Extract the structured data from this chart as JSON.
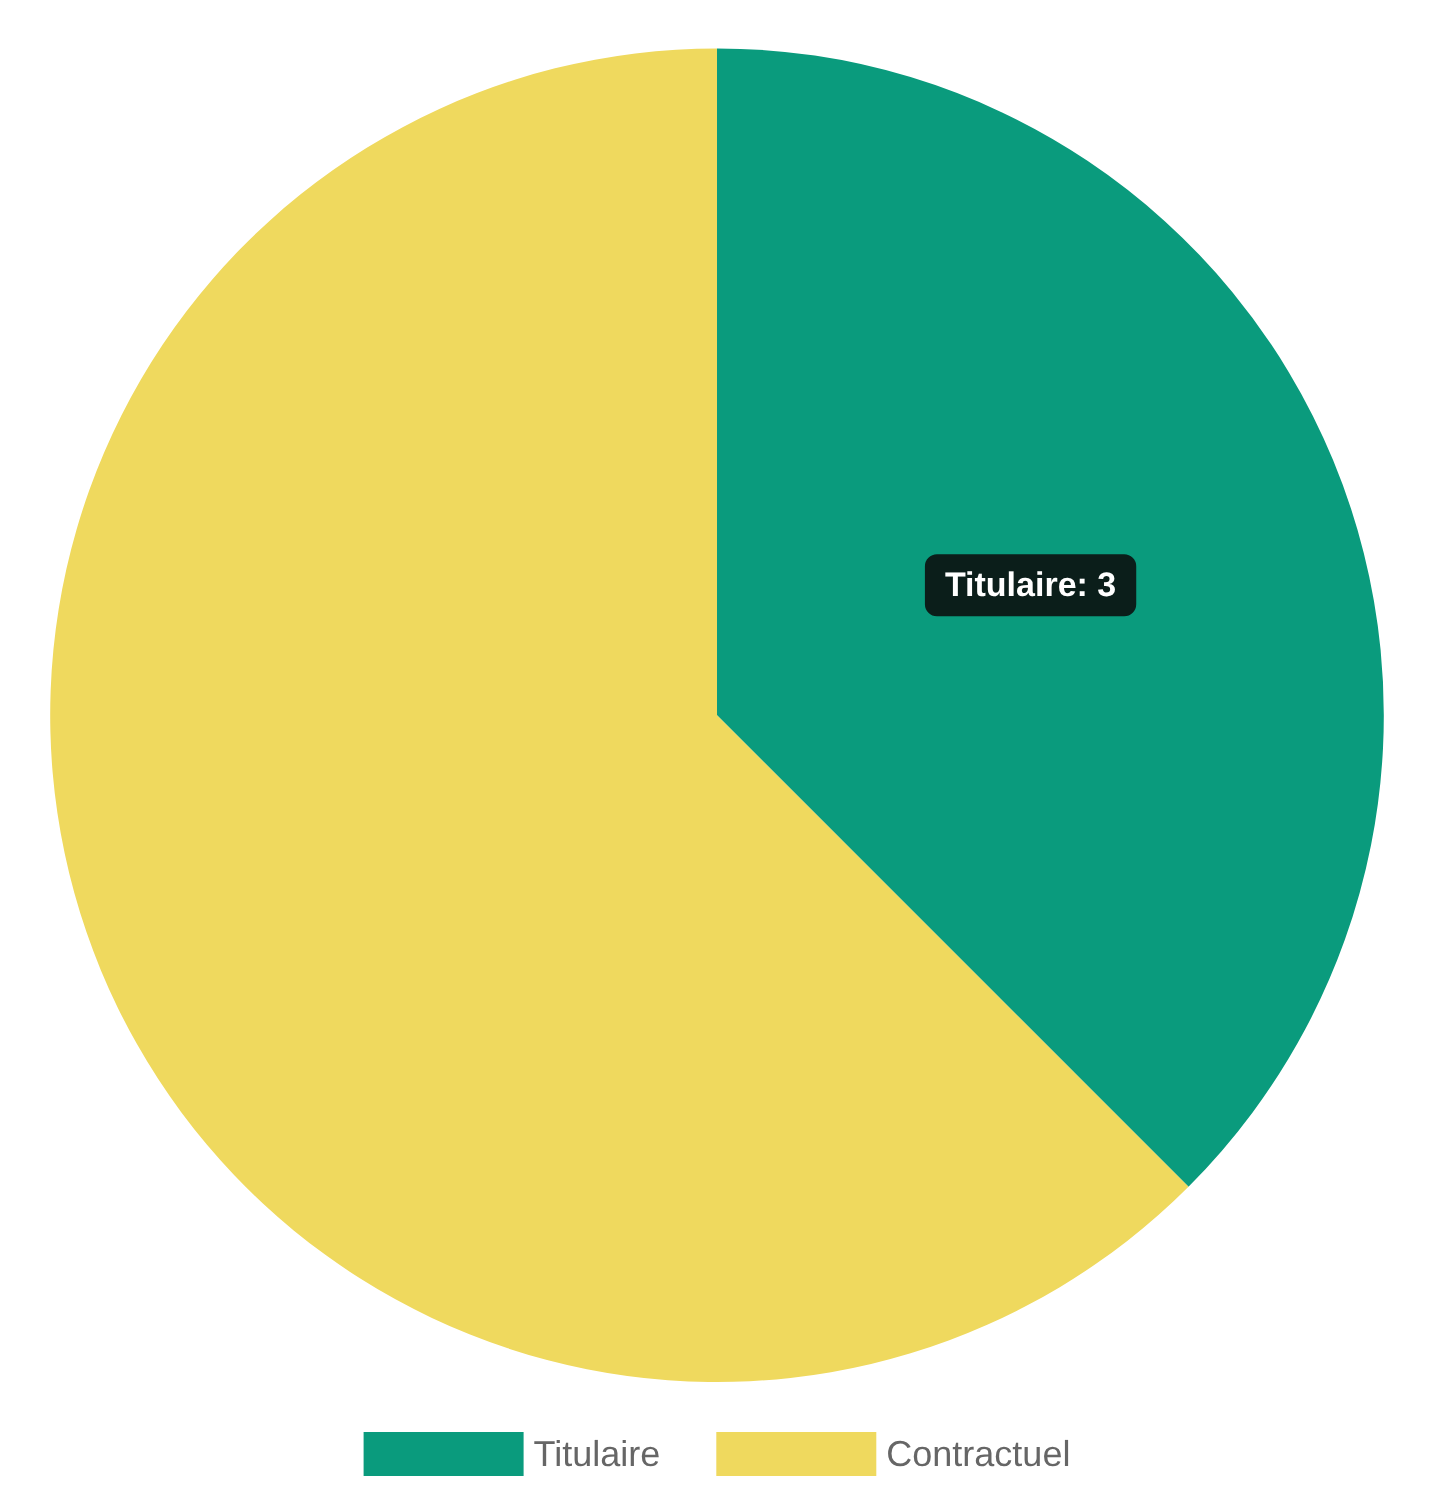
{
  "chart_data": {
    "type": "pie",
    "categories": [
      "Titulaire",
      "Contractuel"
    ],
    "values": [
      3,
      5
    ],
    "colors": [
      "#0a9b7d",
      "#efd95e"
    ],
    "value_labels": [
      "Titulaire: 3",
      null
    ],
    "legend": "bottom"
  }
}
